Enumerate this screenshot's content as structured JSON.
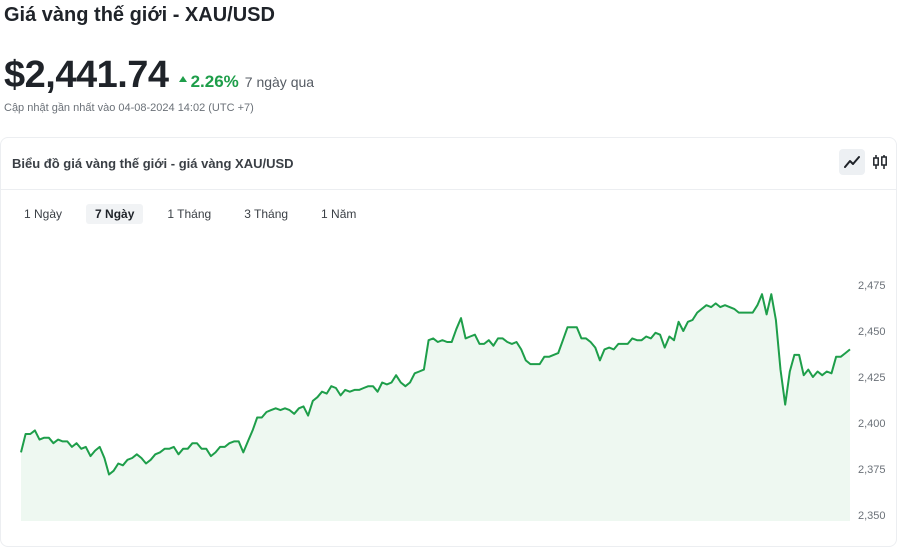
{
  "header": {
    "title": "Giá vàng thế giới - XAU/USD",
    "price": "$2,441.74",
    "change_pct": "2.26%",
    "change_period": "7 ngày qua",
    "updated": "Cập nhật gần nhất vào 04-08-2024 14:02 (UTC +7)"
  },
  "card": {
    "title": "Biểu đồ giá vàng thế giới - giá vàng XAU/USD",
    "view_buttons": [
      {
        "icon": "line-chart-icon",
        "active": true
      },
      {
        "icon": "candlestick-icon",
        "active": false
      }
    ],
    "tabs": [
      {
        "label": "1 Ngày",
        "active": false
      },
      {
        "label": "7 Ngày",
        "active": true
      },
      {
        "label": "1 Tháng",
        "active": false
      },
      {
        "label": "3 Tháng",
        "active": false
      },
      {
        "label": "1 Năm",
        "active": false
      }
    ]
  },
  "colors": {
    "line": "#1e9e4a",
    "area_fill": "#eef8f1",
    "up": "#1e9e4a"
  },
  "chart_data": {
    "type": "area",
    "title": "",
    "xlabel": "",
    "ylabel": "",
    "ylim": [
      2350,
      2478
    ],
    "yticks": [
      2350,
      2375,
      2400,
      2425,
      2450,
      2475
    ],
    "ytick_labels": [
      "2,350",
      "2,375",
      "2,400",
      "2,425",
      "2,450",
      "2,475"
    ],
    "grid": false,
    "y_axis_side": "right",
    "series": [
      {
        "values": [
          2384,
          2394,
          2394,
          2396,
          2391,
          2392,
          2392,
          2389,
          2391,
          2390,
          2390,
          2387,
          2389,
          2386,
          2387,
          2382,
          2385,
          2387,
          2381,
          2372,
          2374,
          2378,
          2377,
          2380,
          2381,
          2383,
          2381,
          2378,
          2380,
          2383,
          2384,
          2386,
          2386,
          2387,
          2383,
          2386,
          2386,
          2389,
          2389,
          2386,
          2386,
          2382,
          2384,
          2387,
          2387,
          2389,
          2390,
          2390,
          2384,
          2390,
          2396,
          2403,
          2403,
          2406,
          2407,
          2408,
          2407,
          2408,
          2407,
          2405,
          2408,
          2409,
          2404,
          2412,
          2414,
          2417,
          2416,
          2420,
          2419,
          2415,
          2418,
          2417,
          2418,
          2418,
          2419,
          2420,
          2420,
          2417,
          2422,
          2421,
          2422,
          2426,
          2422,
          2420,
          2422,
          2427,
          2428,
          2429,
          2445,
          2446,
          2444,
          2445,
          2444,
          2444,
          2451,
          2457,
          2446,
          2447,
          2448,
          2443,
          2443,
          2445,
          2442,
          2446,
          2446,
          2444,
          2443,
          2444,
          2440,
          2434,
          2432,
          2432,
          2432,
          2436,
          2436,
          2437,
          2438,
          2445,
          2452,
          2452,
          2452,
          2446,
          2446,
          2444,
          2441,
          2434,
          2440,
          2441,
          2440,
          2443,
          2443,
          2443,
          2446,
          2445,
          2445,
          2447,
          2446,
          2449,
          2448,
          2441,
          2447,
          2445,
          2455,
          2450,
          2455,
          2456,
          2460,
          2462,
          2464,
          2463,
          2465,
          2463,
          2464,
          2463,
          2462,
          2460,
          2460,
          2460,
          2460,
          2464,
          2470,
          2459,
          2470,
          2456,
          2429,
          2410,
          2428,
          2437,
          2437,
          2426,
          2429,
          2425,
          2428,
          2426,
          2428,
          2427,
          2436,
          2436,
          2438,
          2440
        ]
      }
    ]
  }
}
